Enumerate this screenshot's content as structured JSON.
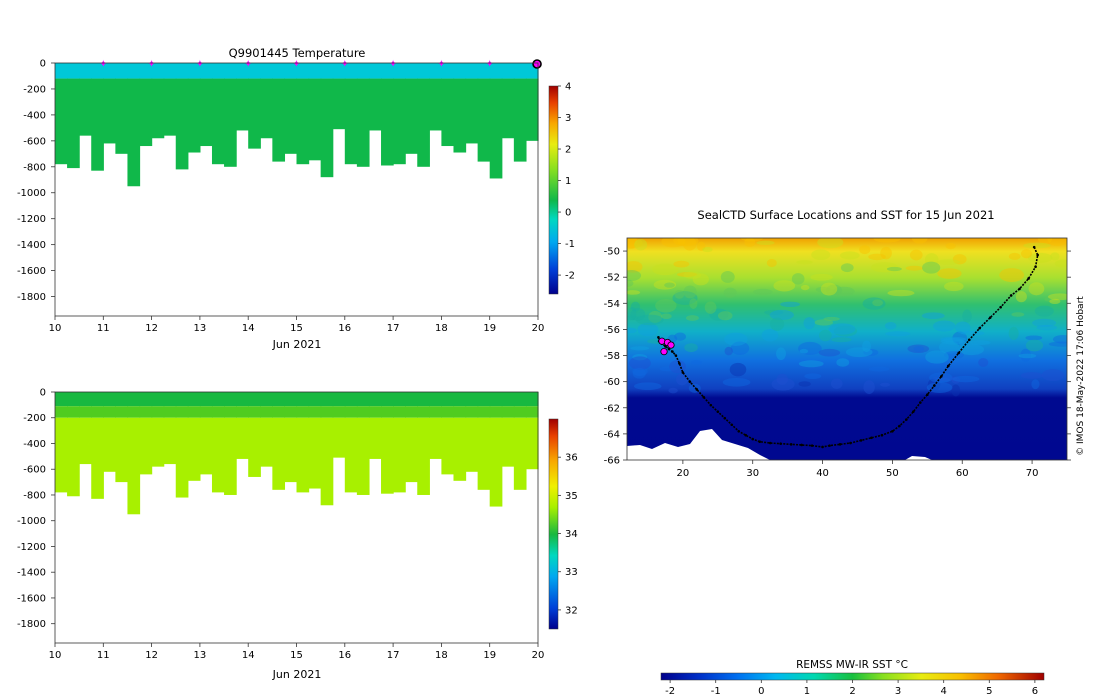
{
  "panels": {
    "temperature": {
      "title": "Q9901445  Temperature",
      "xlabel": "Jun 2021",
      "colorbar_ticks": [
        "4",
        "3",
        "2",
        "1",
        "0",
        "-1",
        "-2"
      ]
    },
    "salinity": {
      "title": "",
      "xlabel": "Jun 2021",
      "colorbar_ticks": [
        "36",
        "35",
        "34",
        "33",
        "32"
      ]
    },
    "map": {
      "title": "SealCTD Surface Locations and SST for 15 Jun 2021",
      "credit": "© IMOS 18-May-2022 17:06 Hobart",
      "colorbar_label": "REMSS MW-IR SST °C",
      "colorbar_ticks": [
        "-2",
        "-1",
        "0",
        "1",
        "2",
        "3",
        "4",
        "5",
        "6"
      ]
    }
  },
  "colors": {
    "temp_surface": "#00c8d8",
    "temp_body": "#10b84a",
    "sal_surface": "#18b840",
    "sal_band": "#50cc20",
    "sal_body": "#a8f000",
    "marker": "#ff00ff",
    "land": "#ffffff",
    "track": "#000000"
  },
  "chart_data": [
    {
      "type": "heatmap",
      "name": "temperature-section",
      "title": "Q9901445  Temperature",
      "xlabel": "Jun 2021",
      "ylabel": "",
      "x_ticks": [
        "10",
        "11",
        "12",
        "13",
        "14",
        "15",
        "16",
        "17",
        "18",
        "19",
        "20"
      ],
      "y_ticks": [
        "0",
        "-200",
        "-400",
        "-600",
        "-800",
        "-1000",
        "-1200",
        "-1400",
        "-1600",
        "-1800"
      ],
      "xlim": [
        10,
        20
      ],
      "ylim": [
        -1950,
        0
      ],
      "profile_markers_x": [
        11,
        12,
        13,
        14,
        15,
        16,
        17,
        18,
        19
      ],
      "last_marker_x": 19.98,
      "colorbar": {
        "min": -2.6,
        "max": 4,
        "ticks": [
          4,
          3,
          2,
          1,
          0,
          -1,
          -2
        ]
      },
      "profile_x": [
        10.05,
        10.3,
        10.55,
        10.8,
        11.05,
        11.3,
        11.55,
        11.8,
        12.05,
        12.3,
        12.55,
        12.8,
        13.05,
        13.3,
        13.55,
        13.8,
        14.05,
        14.3,
        14.55,
        14.8,
        15.05,
        15.3,
        15.55,
        15.8,
        16.05,
        16.3,
        16.55,
        16.8,
        17.05,
        17.3,
        17.55,
        17.8,
        18.05,
        18.3,
        18.55,
        18.8,
        19.05,
        19.3,
        19.55,
        19.8
      ],
      "profile_max_depth": [
        -780,
        -810,
        -560,
        -830,
        -620,
        -700,
        -950,
        -640,
        -580,
        -560,
        -820,
        -690,
        -640,
        -780,
        -800,
        -520,
        -660,
        -580,
        -760,
        -700,
        -780,
        -750,
        -880,
        -510,
        -780,
        -800,
        -520,
        -790,
        -780,
        -700,
        -800,
        -520,
        -640,
        -690,
        -620,
        -760,
        -890,
        -580,
        -760,
        -600
      ],
      "surface_value": -0.6,
      "body_value": 0.4
    },
    {
      "type": "heatmap",
      "name": "salinity-section",
      "title": "",
      "xlabel": "Jun 2021",
      "ylabel": "",
      "x_ticks": [
        "10",
        "11",
        "12",
        "13",
        "14",
        "15",
        "16",
        "17",
        "18",
        "19",
        "20"
      ],
      "y_ticks": [
        "0",
        "-200",
        "-400",
        "-600",
        "-800",
        "-1000",
        "-1200",
        "-1400",
        "-1600",
        "-1800"
      ],
      "xlim": [
        10,
        20
      ],
      "ylim": [
        -1950,
        0
      ],
      "colorbar": {
        "min": 31.5,
        "max": 37,
        "ticks": [
          36,
          35,
          34,
          33,
          32
        ]
      },
      "profile_x": [
        10.05,
        10.3,
        10.55,
        10.8,
        11.05,
        11.3,
        11.55,
        11.8,
        12.05,
        12.3,
        12.55,
        12.8,
        13.05,
        13.3,
        13.55,
        13.8,
        14.05,
        14.3,
        14.55,
        14.8,
        15.05,
        15.3,
        15.55,
        15.8,
        16.05,
        16.3,
        16.55,
        16.8,
        17.05,
        17.3,
        17.55,
        17.8,
        18.05,
        18.3,
        18.55,
        18.8,
        19.05,
        19.3,
        19.55,
        19.8
      ],
      "profile_max_depth": [
        -780,
        -810,
        -560,
        -830,
        -620,
        -700,
        -950,
        -640,
        -580,
        -560,
        -820,
        -690,
        -640,
        -780,
        -800,
        -520,
        -660,
        -580,
        -760,
        -700,
        -780,
        -750,
        -880,
        -510,
        -780,
        -800,
        -520,
        -790,
        -780,
        -700,
        -800,
        -520,
        -640,
        -690,
        -620,
        -760,
        -890,
        -580,
        -760,
        -600
      ],
      "surface_value": 34.1,
      "body_value": 34.7
    },
    {
      "type": "heatmap",
      "name": "sst-map",
      "title": "SealCTD Surface Locations and SST for 15 Jun 2021",
      "xlabel": "",
      "ylabel": "",
      "x_ticks": [
        "20",
        "30",
        "40",
        "50",
        "60",
        "70"
      ],
      "y_ticks": [
        "-50",
        "-52",
        "-54",
        "-56",
        "-58",
        "-60",
        "-62",
        "-64",
        "-66"
      ],
      "xlim": [
        12,
        75
      ],
      "ylim": [
        -66,
        -49
      ],
      "colorbar": {
        "label": "REMSS MW-IR SST °C",
        "min": -2.2,
        "max": 6.2,
        "ticks": [
          -2,
          -1,
          0,
          1,
          2,
          3,
          4,
          5,
          6
        ]
      },
      "track_lon": [
        70.3,
        70.8,
        70.5,
        69.5,
        68.2,
        67,
        65.5,
        64,
        62.5,
        61,
        59.5,
        58,
        57,
        56,
        55,
        54,
        53,
        52,
        51,
        50,
        48.5,
        47,
        45.5,
        44,
        42.5,
        41,
        40,
        38.5,
        37,
        35.5,
        34,
        32.5,
        31,
        30,
        29,
        28,
        27,
        26,
        25,
        24,
        23,
        22,
        21,
        20,
        19.5,
        19,
        18.5,
        18,
        17.5,
        17,
        16.6,
        16.5
      ],
      "track_lat": [
        -49.7,
        -50.3,
        -51.2,
        -52.1,
        -52.9,
        -53.4,
        -54.3,
        -55.1,
        -55.9,
        -56.8,
        -57.8,
        -58.8,
        -59.6,
        -60.3,
        -61,
        -61.6,
        -62.3,
        -62.9,
        -63.4,
        -63.8,
        -64.1,
        -64.3,
        -64.5,
        -64.7,
        -64.8,
        -64.9,
        -65,
        -64.9,
        -64.85,
        -64.8,
        -64.75,
        -64.7,
        -64.6,
        -64.4,
        -64.1,
        -63.8,
        -63.3,
        -62.8,
        -62.3,
        -61.8,
        -61.2,
        -60.6,
        -60,
        -59.3,
        -58.6,
        -58,
        -57.7,
        -57.5,
        -57.3,
        -57.1,
        -56.9,
        -56.6
      ],
      "profile_markers_lon": [
        17.0,
        17.8,
        18.3,
        17.3
      ],
      "profile_markers_lat": [
        -56.9,
        -57.0,
        -57.2,
        -57.7
      ]
    }
  ]
}
